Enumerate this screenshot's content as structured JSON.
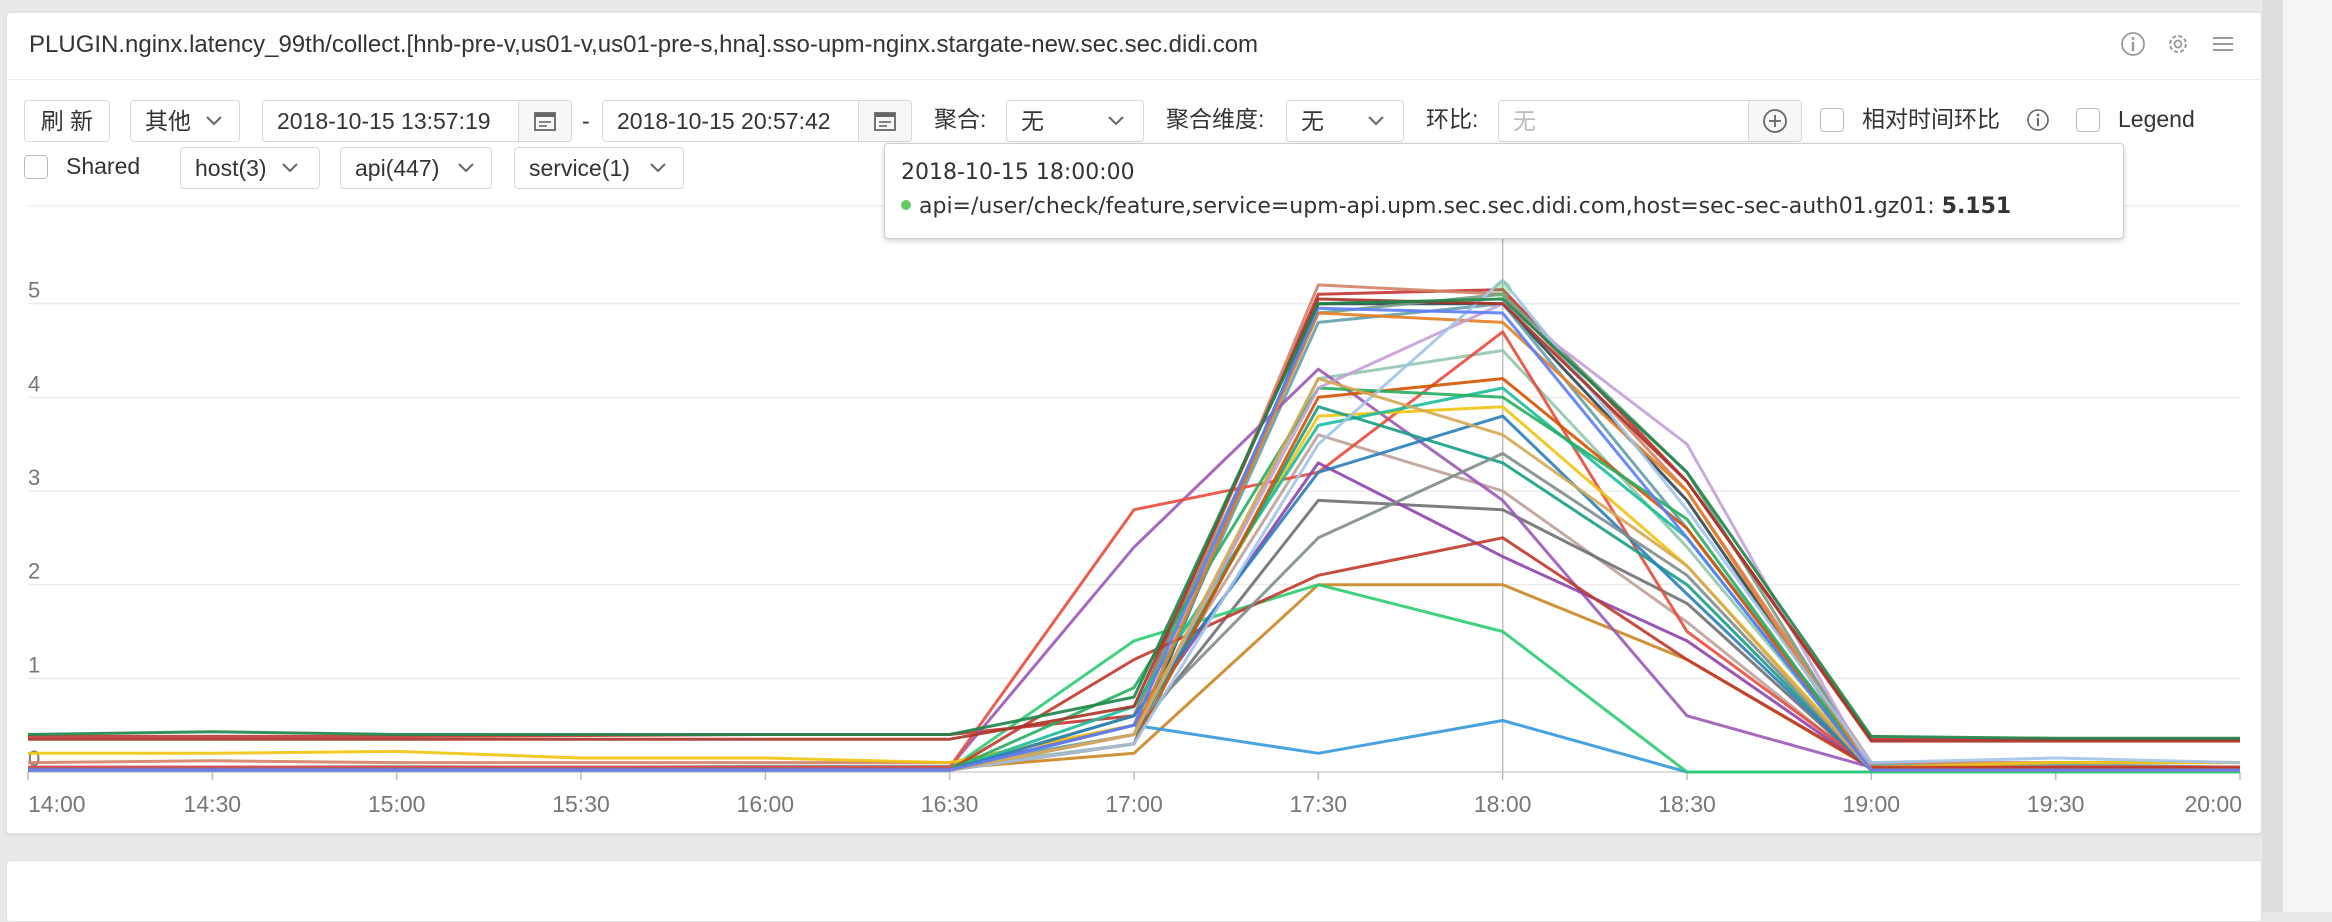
{
  "panel": {
    "title": "PLUGIN.nginx.latency_99th/collect.[hnb-pre-v,us01-v,us01-pre-s,hna].sso-upm-nginx.stargate-new.sec.sec.didi.com",
    "icons": [
      "info-icon",
      "gear-icon",
      "list-menu-icon"
    ]
  },
  "toolbar": {
    "refresh_label": "刷 新",
    "other_label": "其他",
    "start_time": "2018-10-15 13:57:19",
    "separator": "-",
    "end_time": "2018-10-15 20:57:42",
    "aggregate_label": "聚合:",
    "aggregate_value": "无",
    "agg_dimension_label": "聚合维度:",
    "agg_dimension_value": "无",
    "compare_label": "环比:",
    "compare_placeholder": "无",
    "relative_compare_label": "相对时间环比",
    "legend_label": "Legend",
    "shared_label": "Shared",
    "host_filter": "host(3)",
    "api_filter": "api(447)",
    "service_filter": "service(1)"
  },
  "tooltip": {
    "time": "2018-10-15 18:00:00",
    "series": "api=/user/check/feature,service=upm-api.upm.sec.sec.didi.com,host=sec-sec-auth01.gz01:",
    "value": "5.151",
    "dot_color": "#64c964"
  },
  "chart_data": {
    "type": "line",
    "x": [
      "14:00",
      "14:30",
      "15:00",
      "15:30",
      "16:00",
      "16:30",
      "17:00",
      "17:30",
      "18:00",
      "18:30",
      "19:00",
      "19:30",
      "20:00"
    ],
    "xlabel": "",
    "ylabel": "",
    "ylim": [
      0,
      6
    ],
    "yticks": [
      "0",
      "1",
      "2",
      "3",
      "4",
      "5"
    ],
    "grid": true,
    "legend": "hidden",
    "crosshair_x": "18:00",
    "series_count_note": "",
    "series": [
      {
        "color": "#c23531",
        "values": [
          0.38,
          0.38,
          0.38,
          0.39,
          0.4,
          0.4,
          0.6,
          5.1,
          5.15,
          3.1,
          0.35,
          0.35,
          0.35
        ]
      },
      {
        "color": "#2f4554",
        "values": [
          0.02,
          0.02,
          0.02,
          0.02,
          0.02,
          0.02,
          0.3,
          5.0,
          5.0,
          2.9,
          0.05,
          0.05,
          0.05
        ]
      },
      {
        "color": "#61a0a8",
        "values": [
          0.05,
          0.05,
          0.05,
          0.05,
          0.06,
          0.06,
          0.4,
          4.8,
          5.0,
          2.6,
          0.08,
          0.08,
          0.05
        ]
      },
      {
        "color": "#d48265",
        "values": [
          0.1,
          0.12,
          0.1,
          0.1,
          0.1,
          0.1,
          0.5,
          5.2,
          5.1,
          3.0,
          0.1,
          0.1,
          0.1
        ]
      },
      {
        "color": "#91c7ae",
        "values": [
          0.05,
          0.05,
          0.06,
          0.05,
          0.05,
          0.05,
          0.3,
          4.2,
          4.5,
          2.4,
          0.05,
          0.05,
          0.05
        ]
      },
      {
        "color": "#749f83",
        "values": [
          0.03,
          0.03,
          0.03,
          0.03,
          0.03,
          0.03,
          0.6,
          4.9,
          5.1,
          3.2,
          0.04,
          0.04,
          0.04
        ]
      },
      {
        "color": "#ca8622",
        "values": [
          0.04,
          0.04,
          0.04,
          0.04,
          0.04,
          0.04,
          0.2,
          2.0,
          2.0,
          1.2,
          0.04,
          0.04,
          0.04
        ]
      },
      {
        "color": "#bda29a",
        "values": [
          0.02,
          0.02,
          0.02,
          0.02,
          0.02,
          0.02,
          0.5,
          3.6,
          3.0,
          1.6,
          0.02,
          0.02,
          0.02
        ]
      },
      {
        "color": "#6e7074",
        "values": [
          0.02,
          0.02,
          0.02,
          0.02,
          0.02,
          0.02,
          0.4,
          2.9,
          2.8,
          1.8,
          0.02,
          0.02,
          0.02
        ]
      },
      {
        "color": "#3398db",
        "values": [
          0.03,
          0.03,
          0.03,
          0.03,
          0.03,
          0.03,
          0.5,
          0.2,
          0.55,
          0.0,
          0.0,
          0.0,
          0.0
        ]
      },
      {
        "color": "#9b59b6",
        "values": [
          0.05,
          0.05,
          0.05,
          0.05,
          0.05,
          0.05,
          2.4,
          4.3,
          2.9,
          0.6,
          0.05,
          0.05,
          0.05
        ]
      },
      {
        "color": "#e74c3c",
        "values": [
          0.05,
          0.05,
          0.05,
          0.05,
          0.05,
          0.05,
          2.8,
          3.2,
          4.7,
          1.5,
          0.05,
          0.05,
          0.05
        ]
      },
      {
        "color": "#2ecc71",
        "values": [
          0.03,
          0.03,
          0.03,
          0.03,
          0.03,
          0.03,
          1.4,
          2.0,
          1.5,
          0.0,
          0.0,
          0.0,
          0.0
        ]
      },
      {
        "color": "#f1c40f",
        "values": [
          0.2,
          0.2,
          0.22,
          0.15,
          0.15,
          0.1,
          0.5,
          3.8,
          3.9,
          2.2,
          0.05,
          0.1,
          0.1
        ]
      },
      {
        "color": "#1abc9c",
        "values": [
          0.02,
          0.02,
          0.02,
          0.02,
          0.02,
          0.02,
          0.7,
          3.7,
          4.1,
          2.5,
          0.02,
          0.02,
          0.02
        ]
      },
      {
        "color": "#8e44ad",
        "values": [
          0.03,
          0.03,
          0.03,
          0.03,
          0.03,
          0.03,
          0.5,
          3.3,
          2.3,
          1.4,
          0.03,
          0.03,
          0.03
        ]
      },
      {
        "color": "#c0392b",
        "values": [
          0.02,
          0.02,
          0.02,
          0.02,
          0.02,
          0.02,
          1.2,
          2.1,
          2.5,
          1.2,
          0.05,
          0.05,
          0.05
        ]
      },
      {
        "color": "#16a085",
        "values": [
          0.02,
          0.02,
          0.02,
          0.02,
          0.02,
          0.02,
          0.4,
          3.9,
          3.3,
          2.0,
          0.02,
          0.02,
          0.02
        ]
      },
      {
        "color": "#d35400",
        "values": [
          0.02,
          0.02,
          0.02,
          0.02,
          0.02,
          0.02,
          0.3,
          4.0,
          4.2,
          2.6,
          0.02,
          0.02,
          0.02
        ]
      },
      {
        "color": "#27ae60",
        "values": [
          0.02,
          0.02,
          0.02,
          0.02,
          0.02,
          0.02,
          0.9,
          4.1,
          4.0,
          2.7,
          0.02,
          0.02,
          0.02
        ]
      },
      {
        "color": "#2980b9",
        "values": [
          0.02,
          0.02,
          0.02,
          0.02,
          0.02,
          0.02,
          0.6,
          3.2,
          3.8,
          1.9,
          0.02,
          0.02,
          0.02
        ]
      },
      {
        "color": "#7f8c8d",
        "values": [
          0.02,
          0.02,
          0.02,
          0.02,
          0.02,
          0.02,
          0.5,
          2.5,
          3.4,
          2.1,
          0.02,
          0.02,
          0.02
        ]
      },
      {
        "color": "#e67e22",
        "values": [
          0.02,
          0.02,
          0.02,
          0.02,
          0.02,
          0.02,
          0.4,
          4.9,
          4.8,
          3.0,
          0.02,
          0.02,
          0.02
        ]
      },
      {
        "color": "#c4a0d8",
        "values": [
          0.02,
          0.02,
          0.02,
          0.02,
          0.02,
          0.02,
          0.4,
          4.1,
          5.0,
          3.5,
          0.02,
          0.02,
          0.02
        ]
      },
      {
        "color": "#a0c4e8",
        "values": [
          0.02,
          0.02,
          0.02,
          0.02,
          0.02,
          0.02,
          0.3,
          3.5,
          5.25,
          2.8,
          0.1,
          0.15,
          0.1
        ]
      },
      {
        "color": "#d4a853",
        "values": [
          0.02,
          0.02,
          0.02,
          0.02,
          0.02,
          0.02,
          0.4,
          4.2,
          3.6,
          2.2,
          0.02,
          0.02,
          0.02
        ]
      },
      {
        "color": "#5c7cfa",
        "values": [
          0.02,
          0.02,
          0.02,
          0.02,
          0.02,
          0.02,
          0.5,
          4.95,
          4.9,
          2.5,
          0.02,
          0.02,
          0.02
        ]
      },
      {
        "color": "#a93226",
        "values": [
          0.35,
          0.35,
          0.35,
          0.35,
          0.35,
          0.35,
          0.7,
          5.05,
          5.0,
          3.1,
          0.33,
          0.33,
          0.33
        ]
      },
      {
        "color": "#1e8449",
        "values": [
          0.4,
          0.43,
          0.4,
          0.4,
          0.4,
          0.4,
          0.8,
          5.0,
          5.05,
          3.2,
          0.38,
          0.36,
          0.36
        ]
      }
    ]
  }
}
